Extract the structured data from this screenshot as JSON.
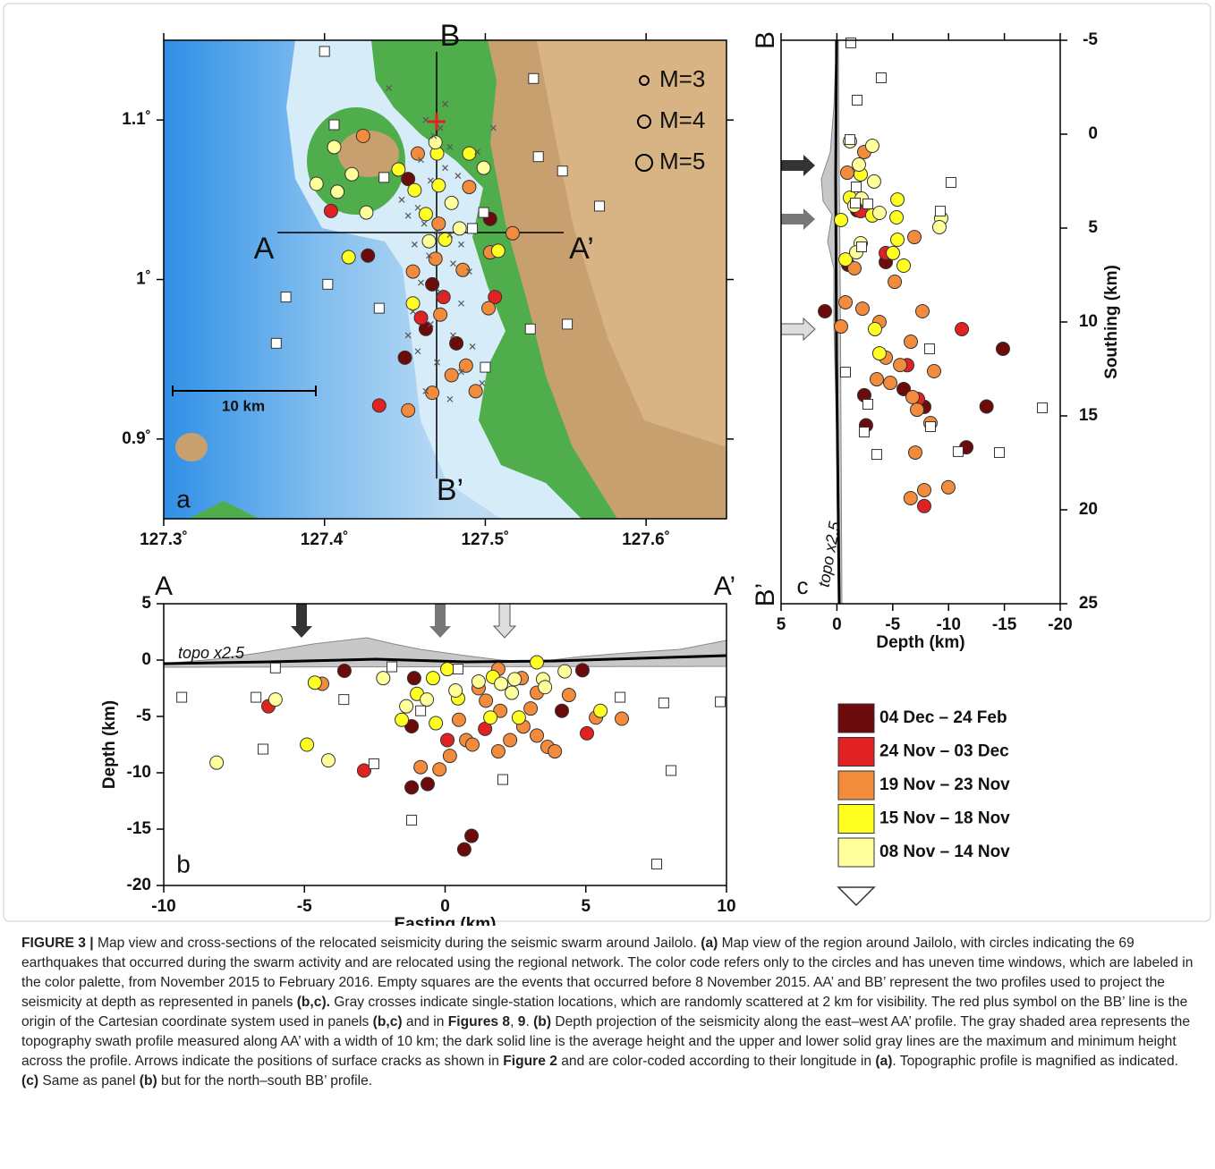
{
  "chart_data": [
    {
      "type": "map-scatter",
      "xlim": [
        127.3,
        127.65
      ],
      "ylim": [
        0.85,
        1.15
      ],
      "xticks": [
        {
          "value": 127.3,
          "label": "127.3˚"
        },
        {
          "value": 127.4,
          "label": "127.4˚"
        },
        {
          "value": 127.5,
          "label": "127.5˚"
        },
        {
          "value": 127.6,
          "label": "127.6˚"
        }
      ],
      "yticks": [
        {
          "value": 0.9,
          "label": "0.9˚"
        },
        {
          "value": 1,
          "label": "1˚"
        },
        {
          "value": 1.1,
          "label": "1.1˚"
        }
      ],
      "annotations": [
        "A",
        "A’",
        "B",
        "B’",
        "a",
        "10 km"
      ],
      "magnitude_legend": [
        {
          "value": 3,
          "label": "M=3"
        },
        {
          "value": 4,
          "label": "M=4"
        },
        {
          "value": 5,
          "label": "M=5"
        }
      ],
      "series": [
        {
          "marker": "circle",
          "color": "#6b0b0b",
          "x": [
            127.452,
            127.427,
            127.467,
            127.463,
            127.45,
            127.482,
            127.503
          ],
          "values": [
            1.063,
            1.015,
            0.997,
            0.969,
            0.951,
            0.96,
            1.038
          ]
        },
        {
          "marker": "circle",
          "color": "#e02222",
          "x": [
            127.404,
            127.434,
            127.474,
            127.46,
            127.506
          ],
          "values": [
            1.043,
            0.921,
            0.989,
            0.976,
            0.989
          ]
        },
        {
          "marker": "circle",
          "color": "#f28c3c",
          "x": [
            127.424,
            127.458,
            127.471,
            127.469,
            127.455,
            127.486,
            127.503,
            127.517,
            127.49,
            127.472,
            127.502,
            127.488,
            127.494,
            127.467,
            127.452,
            127.479
          ],
          "values": [
            1.09,
            1.079,
            1.035,
            1.013,
            1.005,
            1.006,
            1.017,
            1.029,
            1.058,
            0.978,
            0.982,
            0.946,
            0.93,
            0.929,
            0.918,
            0.94
          ]
        },
        {
          "marker": "circle",
          "color": "#ffff22",
          "x": [
            127.415,
            127.446,
            127.456,
            127.471,
            127.49,
            127.47,
            127.475,
            127.463,
            127.508,
            127.455
          ],
          "values": [
            1.014,
            1.069,
            1.056,
            1.059,
            1.079,
            1.079,
            1.025,
            1.041,
            1.018,
            0.985
          ]
        },
        {
          "marker": "circle",
          "color": "#ffff9c",
          "x": [
            127.406,
            127.417,
            127.408,
            127.395,
            127.426,
            127.469,
            127.479,
            127.465,
            127.484,
            127.499
          ],
          "values": [
            1.083,
            1.066,
            1.055,
            1.06,
            1.042,
            1.086,
            1.048,
            1.024,
            1.032,
            1.07
          ]
        },
        {
          "marker": "square",
          "color": "#ffffff",
          "x": [
            127.4,
            127.406,
            127.437,
            127.492,
            127.499,
            127.53,
            127.533,
            127.548,
            127.571,
            127.402,
            127.376,
            127.37,
            127.434,
            127.5,
            127.528,
            127.551
          ],
          "values": [
            1.143,
            1.097,
            1.064,
            1.032,
            1.042,
            1.126,
            1.077,
            1.068,
            1.046,
            0.997,
            0.989,
            0.96,
            0.982,
            0.945,
            0.969,
            0.972
          ]
        },
        {
          "marker": "cross",
          "color": "#555555",
          "x": [
            127.463,
            127.468,
            127.472,
            127.478,
            127.46,
            127.475,
            127.483,
            127.466,
            127.458,
            127.452,
            127.462,
            127.47,
            127.478,
            127.485,
            127.456,
            127.465,
            127.48,
            127.49,
            127.46,
            127.472,
            127.485,
            127.455,
            127.466,
            127.48,
            127.492,
            127.458,
            127.47,
            127.485,
            127.498,
            127.463,
            127.478,
            127.452,
            127.448,
            127.505,
            127.495,
            127.44,
            127.475
          ],
          "values": [
            1.1,
            1.09,
            1.095,
            1.083,
            1.075,
            1.07,
            1.065,
            1.062,
            1.045,
            1.04,
            1.035,
            1.03,
            1.028,
            1.022,
            1.022,
            1.015,
            1.01,
            1.005,
            0.998,
            0.992,
            0.985,
            0.98,
            0.972,
            0.965,
            0.958,
            0.955,
            0.948,
            0.942,
            0.935,
            0.93,
            0.925,
            0.965,
            1.05,
            1.095,
            1.08,
            1.12,
            1.11
          ]
        }
      ]
    },
    {
      "type": "scatter",
      "x_label": "Easting (km)",
      "y_label": "Depth (km)",
      "xlim": [
        -10,
        10
      ],
      "ylim": [
        -20,
        5
      ],
      "xticks": [
        -10,
        -5,
        0,
        5,
        10
      ],
      "yticks": [
        5,
        0,
        -5,
        -10,
        -15,
        -20
      ],
      "annotations": [
        "A",
        "A’",
        "topo x2.5",
        "b"
      ],
      "series": [
        {
          "marker": "circle",
          "color": "#6b0b0b",
          "x": [
            -3.58,
            -1.1,
            -1.19,
            -1.19,
            -0.62,
            0.94,
            0.68,
            4.15,
            4.88
          ],
          "values": [
            -0.95,
            -1.6,
            -5.87,
            -11.3,
            -11,
            -15.6,
            -16.8,
            -4.5,
            -0.9
          ]
        },
        {
          "marker": "circle",
          "color": "#e02222",
          "x": [
            -6.28,
            -2.88,
            0.08,
            1.42,
            5.04
          ],
          "values": [
            -4.1,
            -9.8,
            -7.1,
            -6.1,
            -6.5
          ]
        },
        {
          "marker": "circle",
          "color": "#f28c3c",
          "x": [
            -4.37,
            -0.87,
            -0.2,
            0.17,
            0.49,
            0.75,
            0.97,
            1.89,
            1.45,
            1.96,
            2.31,
            2.78,
            3.26,
            3.64,
            3.9,
            2.72,
            3.26,
            4.4,
            5.36,
            6.28,
            1.89,
            1.19,
            3.04
          ],
          "values": [
            -2.1,
            -9.5,
            -9.7,
            -8.5,
            -5.3,
            -7.1,
            -7.5,
            -0.8,
            -3.6,
            -4.5,
            -7.1,
            -5.9,
            -6.7,
            -7.7,
            -8.1,
            -1.6,
            -2.9,
            -3.1,
            -5.1,
            -5.2,
            -8.1,
            -2.5,
            -4.3
          ]
        },
        {
          "marker": "circle",
          "color": "#ffff22",
          "x": [
            -4.91,
            -1.54,
            -1,
            -0.43,
            0.08,
            -0.33,
            0.46,
            1.61,
            1.7,
            2.62,
            3.26,
            5.52,
            -4.63
          ],
          "values": [
            -7.5,
            -5.3,
            -3,
            -1.6,
            -0.8,
            -5.6,
            -3.4,
            -5.1,
            -1.5,
            -5.1,
            -0.2,
            -4.5,
            -2
          ]
        },
        {
          "marker": "circle",
          "color": "#ffff9c",
          "x": [
            -8.12,
            -6.03,
            -4.15,
            -2.2,
            -1.38,
            -0.65,
            0.37,
            1.19,
            1.99,
            2.37,
            2.47,
            3.48,
            4.25,
            3.55
          ],
          "values": [
            -9.1,
            -3.5,
            -8.9,
            -1.6,
            -4.1,
            -3.5,
            -2.7,
            -1.9,
            -2.1,
            -2.9,
            -1.7,
            -1.7,
            -1,
            -2.4
          ]
        },
        {
          "marker": "square",
          "color": "#ffffff",
          "x": [
            -9.36,
            -6.72,
            -6.47,
            -6.03,
            -3.6,
            -1.89,
            -2.53,
            -1.19,
            -0.87,
            0.46,
            2.05,
            6.22,
            7.77,
            8.03,
            9.78,
            7.52
          ],
          "values": [
            -3.3,
            -3.3,
            -7.9,
            -0.7,
            -3.5,
            -0.6,
            -9.2,
            -14.2,
            -4.5,
            -0.8,
            -10.6,
            -3.3,
            -3.8,
            -9.8,
            -3.7,
            -18.1
          ]
        }
      ]
    },
    {
      "type": "scatter",
      "x_label": "Depth (km)",
      "y_label": "Southing (km)",
      "xlim": [
        5,
        -20
      ],
      "ylim": [
        25,
        -5
      ],
      "xticks": [
        5,
        0,
        -5,
        -10,
        -15,
        -20
      ],
      "yticks": [
        -5,
        0,
        5,
        10,
        15,
        20,
        25
      ],
      "annotations": [
        "B",
        "B’",
        "topo x2.5",
        "c"
      ],
      "series": [
        {
          "marker": "circle",
          "color": "#6b0b0b",
          "x": [
            1.07,
            -1.81,
            -1.01,
            -4.38,
            -5.98,
            -2.45,
            -7.82,
            -14.87,
            -11.59,
            -13.4,
            -2.61
          ],
          "values": [
            9.43,
            4.05,
            6.95,
            6.81,
            13.57,
            13.9,
            14.52,
            11.43,
            16.67,
            14.5,
            15.5
          ]
        },
        {
          "marker": "circle",
          "color": "#e02222",
          "x": [
            -2.13,
            -4.38,
            -11.19,
            -6.3,
            -7.26,
            -7.82
          ],
          "values": [
            4.1,
            6.33,
            10.38,
            12.3,
            14.1,
            19.8
          ]
        },
        {
          "marker": "circle",
          "color": "#f28c3c",
          "x": [
            -0.93,
            -2.45,
            -1.57,
            -0.77,
            -2.29,
            -3.81,
            -0.37,
            -6.94,
            -5.18,
            -7.66,
            -6.62,
            -4.38,
            -3.57,
            -4.78,
            -5.66,
            -8.7,
            -6.78,
            -7.18,
            -8.38,
            -7.02,
            -7.82,
            -6.6,
            -9.98
          ],
          "values": [
            2.05,
            0.95,
            7.14,
            8.95,
            9.29,
            10,
            10.24,
            5.48,
            7.86,
            9.43,
            11.05,
            11.9,
            13.05,
            13.24,
            12.29,
            12.62,
            14,
            14.67,
            15.38,
            16.95,
            18.95,
            19.38,
            18.8
          ]
        },
        {
          "marker": "circle",
          "color": "#ffff22",
          "x": [
            -2.13,
            -1.17,
            -3.17,
            -5.42,
            -5.34,
            -0.37,
            -5.42,
            -0.77,
            -5.02,
            -5.98,
            -3.41,
            -3.81
          ],
          "values": [
            2.14,
            3.38,
            4.33,
            3.48,
            4.43,
            4.57,
            5.62,
            6.67,
            6.33,
            7,
            10.38,
            11.67
          ]
        },
        {
          "marker": "circle",
          "color": "#ffff9c",
          "x": [
            -1.17,
            -3.17,
            -1.97,
            -3.33,
            -2.21,
            -1.57,
            -3.81,
            -9.34,
            -9.18,
            -2.13,
            -1.73
          ],
          "values": [
            0.38,
            0.62,
            1.62,
            2.52,
            3.43,
            3.81,
            4.19,
            4.48,
            4.95,
            5.81,
            6.29
          ]
        },
        {
          "marker": "square",
          "color": "#ffffff",
          "x": [
            -3.97,
            -1.81,
            -1.25,
            -1.17,
            -1.73,
            -1.65,
            -2.77,
            -10.22,
            -9.26,
            -2.21,
            -0.77,
            -2.77,
            -2.45,
            -3.57,
            -8.3,
            -8.38,
            -10.86,
            -14.55,
            -18.4
          ],
          "values": [
            -3,
            -1.81,
            -4.86,
            0.29,
            2.81,
            3.67,
            3.71,
            2.57,
            4.1,
            6,
            12.67,
            14.38,
            15.86,
            17.05,
            11.43,
            15.57,
            16.9,
            16.95,
            14.57
          ]
        }
      ]
    }
  ],
  "legend": {
    "items": [
      {
        "label": "04 Dec – 24 Feb",
        "color": "#6b0b0b"
      },
      {
        "label": "24 Nov – 03 Dec",
        "color": "#e02222"
      },
      {
        "label": "19 Nov – 23 Nov",
        "color": "#f28c3c"
      },
      {
        "label": "15 Nov – 18 Nov",
        "color": "#ffff22"
      },
      {
        "label": "08 Nov – 14 Nov",
        "color": "#ffff9c"
      }
    ]
  },
  "caption": {
    "runs": [
      {
        "text": "FIGURE 3 |",
        "bold": true
      },
      {
        "text": " Map view and cross-sections of the relocated seismicity during the seismic swarm around Jailolo. "
      },
      {
        "text": "(a)",
        "bold": true
      },
      {
        "text": " Map view of the region around Jailolo, with circles indicating the 69 earthquakes that occurred during the swarm activity and are relocated using the regional network. The color code refers only to the circles and has uneven time windows, which are labeled in the color palette, from November 2015 to February 2016. Empty squares are the events that occurred before 8 November 2015. AA’ and BB’ represent the two profiles used to project the seismicity at depth as represented in panels "
      },
      {
        "text": "(b,c).",
        "bold": true
      },
      {
        "text": " Gray crosses indicate single-station locations, which are randomly scattered at 2 km for visibility. The red plus symbol on the BB’ line is the origin of the Cartesian coordinate system used in panels "
      },
      {
        "text": "(b,c)",
        "bold": true
      },
      {
        "text": " and in "
      },
      {
        "text": "Figures 8",
        "bold": true
      },
      {
        "text": ", "
      },
      {
        "text": "9",
        "bold": true
      },
      {
        "text": ". "
      },
      {
        "text": "(b)",
        "bold": true
      },
      {
        "text": " Depth projection of the seismicity along the east–west AA’ profile. The gray shaded area represents the topography swath profile measured along AA’ with a width of 10 km; the dark solid line is the average height and the upper and lower solid gray lines are the maximum and minimum height across the profile. Arrows indicate the positions of surface cracks as shown in "
      },
      {
        "text": "Figure 2",
        "bold": true
      },
      {
        "text": " and are color-coded according to their longitude in "
      },
      {
        "text": "(a)",
        "bold": true
      },
      {
        "text": ". Topographic profile is magnified as indicated. "
      },
      {
        "text": "(c)",
        "bold": true
      },
      {
        "text": " Same as panel "
      },
      {
        "text": "(b)",
        "bold": true
      },
      {
        "text": " but for the north–south BB’ profile."
      }
    ]
  }
}
